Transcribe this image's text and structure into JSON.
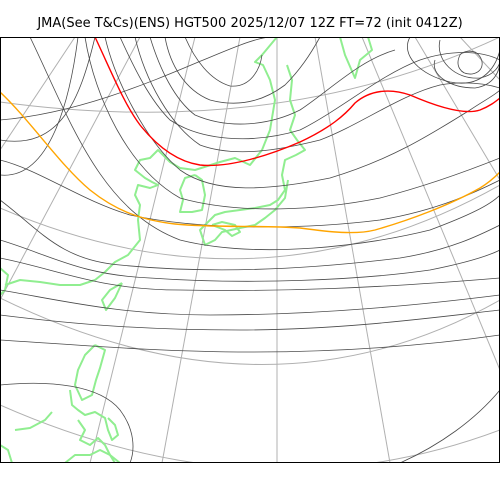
{
  "map": {
    "title": "JMA(See T&Cs)(ENS) HGT500 2025/12/07 12Z FT=72 (init 0412Z)",
    "colors": {
      "background": "#ffffff",
      "frame": "#000000",
      "graticule": "#b0b0b0",
      "coastline": "#90ee90",
      "contour": "#4a4a4a",
      "highlight_contour_red": "#ff0000",
      "highlight_contour_orange": "#ffa500"
    }
  }
}
